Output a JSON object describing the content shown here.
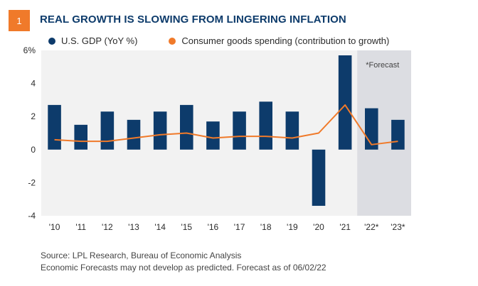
{
  "badge": "1",
  "title": "REAL GROWTH IS SLOWING FROM LINGERING INFLATION",
  "legend": {
    "gdp_label": "U.S. GDP (YoY %)",
    "spend_label": "Consumer goods spending (contribution to growth)"
  },
  "footer": {
    "source": "Source: LPL Research, Bureau of Economic Analysis",
    "note": "Economic Forecasts may not develop as predicted. Forecast as of  06/02/22"
  },
  "colors": {
    "bar": "#0d3b6b",
    "line": "#f07a2a",
    "plot_bg": "#f2f2f2",
    "forecast_bg": "#dcdde2"
  },
  "chart_data": {
    "type": "bar",
    "categories": [
      "'10",
      "'11",
      "'12",
      "'13",
      "'14",
      "'15",
      "'16",
      "'17",
      "'18",
      "'19",
      "'20",
      "'21",
      "'22*",
      "'23*"
    ],
    "series": [
      {
        "name": "U.S. GDP (YoY %)",
        "type": "bar",
        "values": [
          2.7,
          1.5,
          2.3,
          1.8,
          2.3,
          2.7,
          1.7,
          2.3,
          2.9,
          2.3,
          -3.4,
          5.7,
          2.5,
          1.8
        ]
      },
      {
        "name": "Consumer goods spending (contribution to growth)",
        "type": "line",
        "values": [
          0.6,
          0.5,
          0.5,
          0.7,
          0.9,
          1.0,
          0.7,
          0.8,
          0.8,
          0.7,
          1.0,
          2.7,
          0.3,
          0.5
        ]
      }
    ],
    "yticks": [
      "6%",
      "4",
      "2",
      "0",
      "-2",
      "-4"
    ],
    "ylim": [
      -4,
      6
    ],
    "forecast_label": "*Forecast",
    "forecast_from_category": "'22*"
  }
}
